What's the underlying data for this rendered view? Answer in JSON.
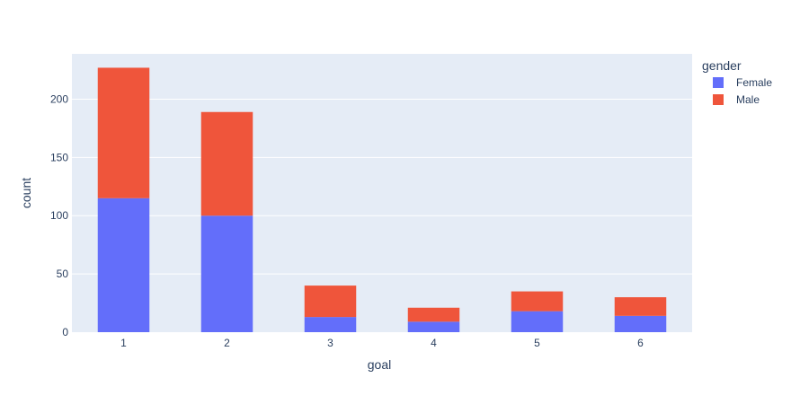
{
  "chart_data": {
    "type": "bar",
    "barmode": "stack",
    "categories": [
      "1",
      "2",
      "3",
      "4",
      "5",
      "6"
    ],
    "series": [
      {
        "name": "Female",
        "color": "#636efa",
        "values": [
          115,
          100,
          13,
          9,
          18,
          14
        ]
      },
      {
        "name": "Male",
        "color": "#ef553b",
        "values": [
          112,
          89,
          27,
          12,
          17,
          16
        ]
      }
    ],
    "xlabel": "goal",
    "ylabel": "count",
    "ylim": [
      0,
      238.9
    ],
    "yticks": [
      0,
      50,
      100,
      150,
      200
    ],
    "grid": true,
    "legend": {
      "title": "gender",
      "position": "top-right"
    },
    "plot_bgcolor": "#e5ecf6"
  }
}
